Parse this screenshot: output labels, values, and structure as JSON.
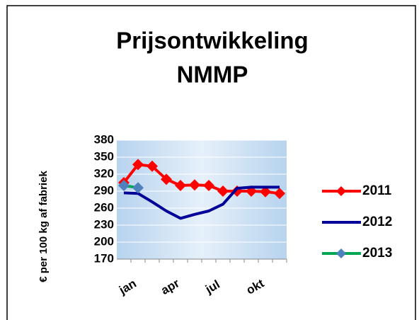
{
  "chart_data": {
    "type": "line",
    "title": [
      "Prijsontwikkeling",
      "NMMP"
    ],
    "y_label": "€ per 100 kg af fabriek",
    "categories": [
      "jan",
      null,
      null,
      "apr",
      null,
      null,
      "jul",
      null,
      null,
      "okt",
      null,
      null
    ],
    "series": [
      {
        "name": "2011",
        "color": "#ff0000",
        "marker_color": "#ff0000",
        "values": [
          305,
          337,
          334,
          311,
          300,
          301,
          300,
          290,
          290,
          290,
          289,
          286
        ]
      },
      {
        "name": "2012",
        "color": "#000099",
        "values": [
          287,
          286,
          271,
          255,
          242,
          249,
          255,
          267,
          295,
          297,
          297,
          297
        ]
      },
      {
        "name": "2013",
        "color": "#00a651",
        "marker_color": "#4f81bd",
        "values": [
          300,
          296,
          null,
          null,
          null,
          null,
          null,
          null,
          null,
          null,
          null,
          null
        ]
      }
    ],
    "ylim": [
      170,
      380
    ],
    "yticks": [
      170,
      200,
      230,
      260,
      290,
      320,
      350,
      380
    ],
    "grid": true,
    "legend": "right"
  }
}
